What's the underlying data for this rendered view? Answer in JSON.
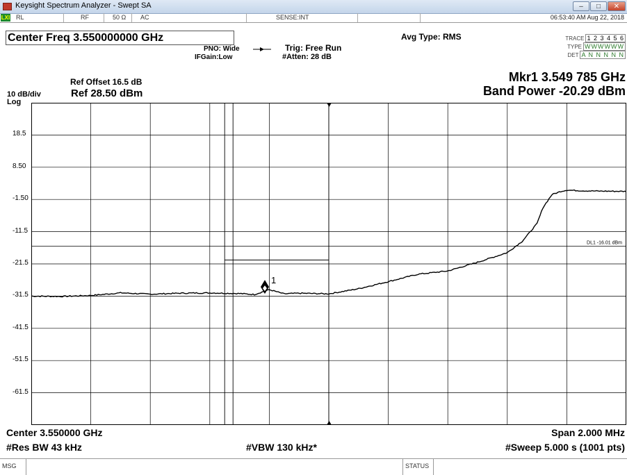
{
  "window": {
    "title": "Keysight Spectrum Analyzer - Swept SA",
    "buttons": [
      "minimize",
      "maximize",
      "close"
    ]
  },
  "status_bar": {
    "lxi": "LXI",
    "rl": "RL",
    "rf": "RF",
    "impedance": "50 Ω",
    "coupling": "AC",
    "sense": "SENSE:INT",
    "datetime": "06:53:40 AM Aug 22, 2018"
  },
  "settings": {
    "center_freq": "Center Freq 3.550000000 GHz",
    "pno": "PNO: Wide",
    "ifgain": "IFGain:Low",
    "trig": "Trig: Free Run",
    "atten": "#Atten: 28 dB",
    "avg_type": "Avg Type: RMS",
    "trace": {
      "trace_label": "TRACE",
      "trace_values": "1 2 3 4 5 6",
      "type_label": "TYPE",
      "type_values": "WWWWWW",
      "det_label": "DET",
      "det_values": "A N N N N N"
    },
    "ref_offset": "Ref Offset 16.5 dB",
    "scale": "10 dB/div",
    "ref_level": "Ref 28.50 dBm",
    "log": "Log"
  },
  "marker": {
    "line1": "Mkr1 3.549 785 GHz",
    "line2": "Band Power -20.29 dBm",
    "label": "1"
  },
  "display_line": {
    "label": "DL1 -16.01 dBm",
    "value": -16.01
  },
  "bottom": {
    "center": "Center 3.550000 GHz",
    "span": "Span 2.000 MHz",
    "res_bw": "#Res BW 43 kHz",
    "vbw": "#VBW 130 kHz*",
    "sweep": "#Sweep  5.000 s (1001 pts)"
  },
  "msg_bar": {
    "msg": "MSG",
    "status": "STATUS"
  },
  "colors": {
    "trace": "#000000",
    "grid": "#000000",
    "background": "#ffffff"
  },
  "chart_data": {
    "type": "line",
    "xlabel": "",
    "ylabel": "",
    "xlim": [
      3.549,
      3.551
    ],
    "x_unit": "GHz",
    "ylim": [
      -71.5,
      28.5
    ],
    "y_ticks": [
      18.5,
      8.5,
      -1.5,
      -11.5,
      -21.5,
      -31.5,
      -41.5,
      -51.5,
      -61.5
    ],
    "y_tick_labels": [
      "18.5",
      "8.50",
      "-1.50",
      "-11.5",
      "-21.5",
      "-31.5",
      "-41.5",
      "-51.5",
      "-61.5"
    ],
    "grid": true,
    "series": [
      {
        "x": [
          3.549,
          3.5491,
          3.5492,
          3.5493,
          3.5494,
          3.5495,
          3.5496,
          3.5497,
          3.54975,
          3.5498,
          3.54985,
          3.5499,
          3.55,
          3.5501,
          3.5502,
          3.5503,
          3.5504,
          3.5505,
          3.5506,
          3.55065,
          3.5507,
          3.55072,
          3.55075,
          3.55078,
          3.5508,
          3.55085,
          3.5509,
          3.551
        ],
        "y": [
          -31.5,
          -31.6,
          -31.3,
          -30.5,
          -30.9,
          -30.6,
          -30.5,
          -30.7,
          -31.0,
          -29.5,
          -30.8,
          -30.6,
          -30.8,
          -29.2,
          -27.0,
          -24.7,
          -23.7,
          -21.0,
          -18.0,
          -14.5,
          -9.0,
          -4.0,
          0.0,
          1.0,
          1.4,
          1.2,
          1.1,
          1.0
        ]
      }
    ],
    "marker": {
      "x": 3.549785,
      "y": -29.5
    },
    "band_power": {
      "x_start": 3.54965,
      "x_end": 3.55,
      "value": -20.29
    },
    "display_line": -16.01
  }
}
